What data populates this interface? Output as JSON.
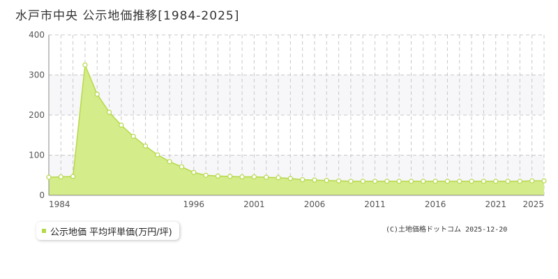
{
  "colors": {
    "line": "#b6d94a",
    "fill": "#d4ec8a",
    "marker_fill": "#ffffff",
    "grid": "#c8c8c8",
    "band": "#f7f6f9",
    "axis": "#888888",
    "legend_marker": "#b6d94a"
  },
  "legend": {
    "label": "公示地価 平均坪単価(万円/坪)"
  },
  "copyright": "(C)土地価格ドットコム 2025-12-20",
  "chart_data": {
    "type": "area",
    "title": "水戸市中央 公示地価推移[1984-2025]",
    "xlabel": "",
    "ylabel": "",
    "xlim": [
      1984,
      2025
    ],
    "ylim": [
      0,
      400
    ],
    "y_ticks": [
      0,
      100,
      200,
      300,
      400
    ],
    "x_tick_labels": [
      "1984",
      "1996",
      "2001",
      "2006",
      "2011",
      "2016",
      "2021",
      "2025"
    ],
    "grid": true,
    "legend_position": "bottom-left",
    "series": [
      {
        "name": "公示地価 平均坪単価(万円/坪)",
        "x": [
          1984,
          1985,
          1986,
          1987,
          1988,
          1989,
          1990,
          1991,
          1992,
          1993,
          1994,
          1995,
          1996,
          1997,
          1998,
          1999,
          2000,
          2001,
          2002,
          2003,
          2004,
          2005,
          2006,
          2007,
          2008,
          2009,
          2010,
          2011,
          2012,
          2013,
          2014,
          2015,
          2016,
          2017,
          2018,
          2019,
          2020,
          2021,
          2022,
          2023,
          2024,
          2025
        ],
        "y": [
          45,
          46,
          47,
          325,
          252,
          207,
          175,
          147,
          123,
          101,
          84,
          71,
          57,
          50,
          48,
          47,
          46,
          46,
          45,
          44,
          42,
          39,
          38,
          37,
          36,
          35,
          35,
          35,
          35,
          35,
          35,
          35,
          35,
          35,
          35,
          35,
          35,
          35,
          35,
          35,
          36,
          36
        ]
      }
    ]
  }
}
